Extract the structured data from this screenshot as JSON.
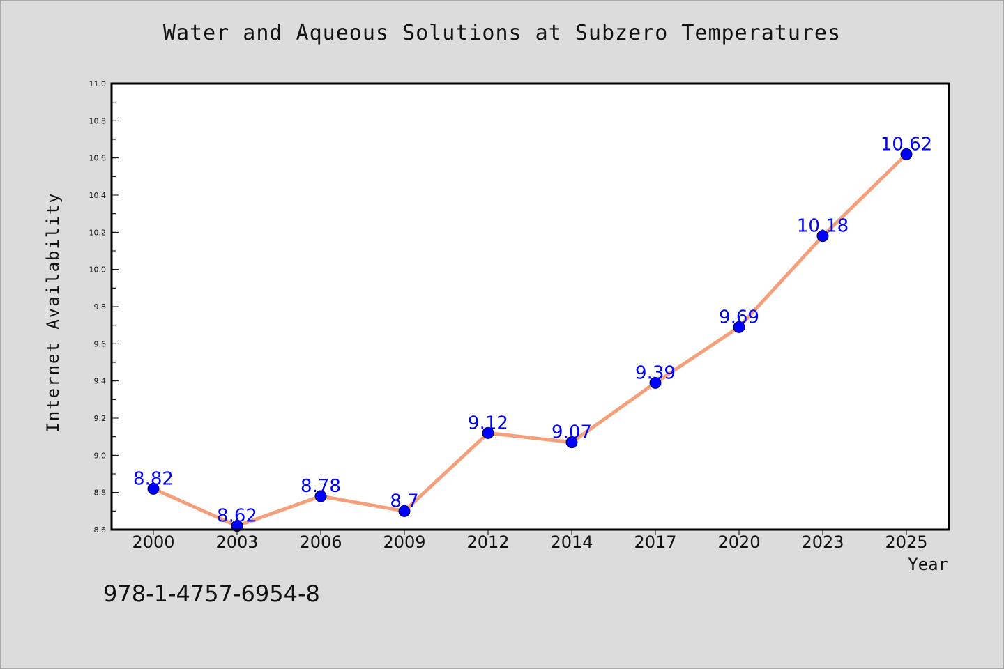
{
  "chart_data": {
    "type": "line",
    "title": "Water and Aqueous Solutions at Subzero Temperatures",
    "xlabel": "Year",
    "ylabel": "Internet Availability",
    "categories": [
      "2000",
      "2003",
      "2006",
      "2009",
      "2012",
      "2014",
      "2017",
      "2020",
      "2023",
      "2025"
    ],
    "series": [
      {
        "values": [
          8.82,
          8.62,
          8.78,
          8.7,
          9.12,
          9.07,
          9.39,
          9.69,
          10.18,
          10.62
        ],
        "labels": [
          "8.82",
          "8.62",
          "8.78",
          "8.7",
          "9.12",
          "9.07",
          "9.39",
          "9.69",
          "10.18",
          "10.62"
        ],
        "line_color": "#f4a07c",
        "marker_color": "#0000ff",
        "label_color": "#0000ff"
      }
    ],
    "ylim": [
      8.6,
      11.0
    ],
    "yticks": [
      "8.6",
      "8.8",
      "9.0",
      "9.2",
      "9.4",
      "9.6",
      "9.8",
      "10.0",
      "10.2",
      "10.4",
      "10.6",
      "10.8",
      "11.0"
    ],
    "grid": false,
    "legend": "none",
    "background_color": "#ffffff",
    "page_color": "#dcdcdc"
  },
  "footer": {
    "isbn": "978-1-4757-6954-8"
  }
}
